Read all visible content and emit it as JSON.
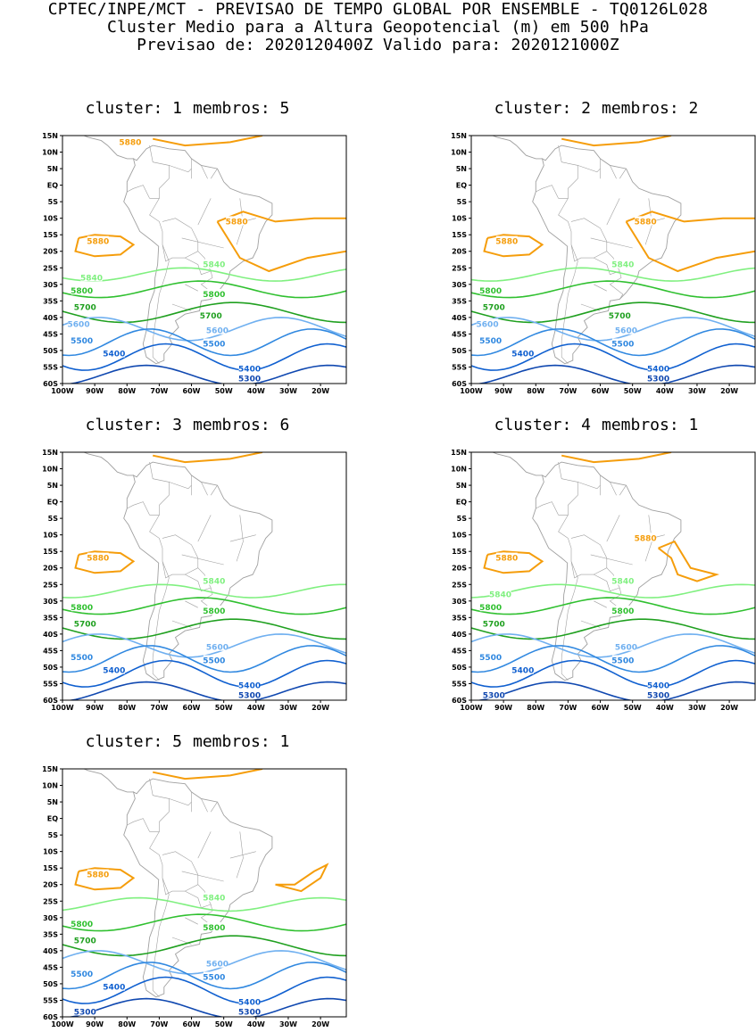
{
  "header": {
    "line1": "CPTEC/INPE/MCT - PREVISAO DE TEMPO GLOBAL POR ENSEMBLE - TQ0126L028",
    "line2": "Cluster Medio para a Altura Geopotencial (m) em 500 hPa",
    "line3": "Previsao de: 2020120400Z    Valido para: 2020121000Z"
  },
  "axes": {
    "lat_labels": [
      "15N",
      "10N",
      "5N",
      "EQ",
      "5S",
      "10S",
      "15S",
      "20S",
      "25S",
      "30S",
      "35S",
      "40S",
      "45S",
      "50S",
      "55S",
      "60S"
    ],
    "lon_labels": [
      "100W",
      "90W",
      "80W",
      "70W",
      "60W",
      "50W",
      "40W",
      "30W",
      "20W"
    ]
  },
  "colors": {
    "c5880": "#f59d0b",
    "c5840": "#80f080",
    "c5800": "#30c030",
    "c5700": "#20a020",
    "c5600": "#70b0f0",
    "c5500": "#3088e0",
    "c5400": "#1060d0",
    "c5300": "#1048b0",
    "coast": "#a0a0a0"
  },
  "panels": [
    {
      "title": "cluster: 1",
      "members": "membros: 5",
      "labels": {
        "a": "5880",
        "b": "5880",
        "c": "5880",
        "d": "5840",
        "e": "5840",
        "f": "5800",
        "g": "5800",
        "h": "5700",
        "i": "5700",
        "j": "5600",
        "k": "5600",
        "l": "5500",
        "m": "5500",
        "n": "5400",
        "o": "5400",
        "p": "5300"
      }
    },
    {
      "title": "cluster: 2",
      "members": "membros: 2",
      "labels": {
        "a": "5880",
        "b": "5880",
        "d": "5840",
        "f": "5800",
        "h": "5700",
        "i": "5700",
        "j": "5600",
        "k": "5600",
        "l": "5500",
        "m": "5500",
        "n": "5400",
        "o": "5400",
        "p": "5300"
      }
    },
    {
      "title": "cluster: 3",
      "members": "membros: 6",
      "labels": {
        "a": "5880",
        "d": "5840",
        "f": "5800",
        "g": "5800",
        "h": "5700",
        "j": "5600",
        "l": "5500",
        "m": "5500",
        "n": "5400",
        "o": "5400",
        "p": "5300"
      }
    },
    {
      "title": "cluster: 4",
      "members": "membros: 1",
      "labels": {
        "a": "5880",
        "b": "5880",
        "d": "5840",
        "e": "5840",
        "f": "5800",
        "g": "5800",
        "h": "5700",
        "j": "5600",
        "l": "5500",
        "m": "5500",
        "n": "5400",
        "o": "5400",
        "p": "5300",
        "q": "5300"
      }
    },
    {
      "title": "cluster: 5",
      "members": "membros: 1",
      "labels": {
        "a": "5880",
        "d": "5840",
        "f": "5800",
        "g": "5800",
        "h": "5700",
        "j": "5600",
        "l": "5500",
        "m": "5500",
        "n": "5400",
        "o": "5400",
        "p": "5300",
        "q": "5300"
      }
    }
  ]
}
